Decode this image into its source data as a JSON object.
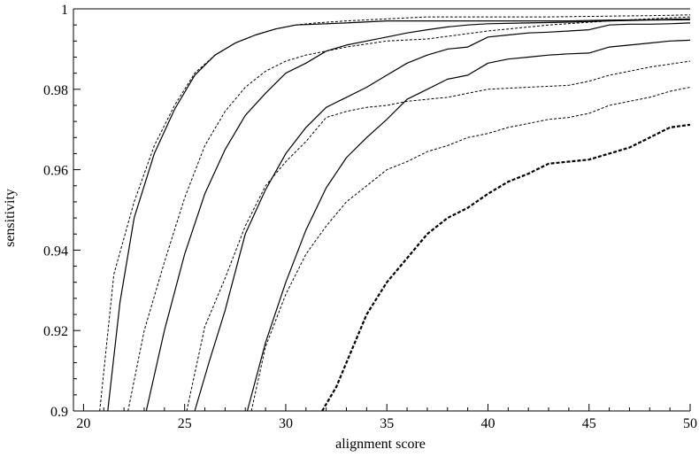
{
  "chart_data": {
    "type": "line",
    "title": "",
    "xlabel": "alignment score",
    "ylabel": "sensitivity",
    "xlim": [
      19.5,
      50
    ],
    "ylim": [
      0.9,
      1.0
    ],
    "xticks": [
      20,
      25,
      30,
      35,
      40,
      45,
      50
    ],
    "yticks": [
      0.9,
      0.92,
      0.94,
      0.96,
      0.98,
      1.0
    ],
    "xtick_labels": [
      "20",
      "25",
      "30",
      "35",
      "40",
      "45",
      "50"
    ],
    "ytick_labels": [
      "0.9",
      "0.92",
      "0.94",
      "0.96",
      "0.98",
      "1"
    ],
    "grid": false,
    "legend": "none",
    "colors": {
      "line": "#000000",
      "axis": "#000000",
      "background": "#ffffff"
    },
    "series": [
      {
        "style": "dashed",
        "x": [
          20.8,
          21.5,
          22.5,
          23.5,
          24.5,
          25.5,
          26.5,
          27.5,
          28.5,
          29.5,
          30.5,
          31.5,
          33,
          35,
          37,
          40,
          43,
          46,
          48,
          50
        ],
        "y": [
          0.9,
          0.934,
          0.952,
          0.966,
          0.976,
          0.984,
          0.9885,
          0.9915,
          0.9935,
          0.995,
          0.996,
          0.9965,
          0.997,
          0.9975,
          0.998,
          0.998,
          0.998,
          0.9982,
          0.9983,
          0.9985
        ]
      },
      {
        "style": "solid",
        "x": [
          21.2,
          21.8,
          22.5,
          23.5,
          24.5,
          25.5,
          26.5,
          27.5,
          28.5,
          29.5,
          30.5,
          31.5,
          33,
          35,
          38,
          41,
          44,
          46,
          48,
          50
        ],
        "y": [
          0.9,
          0.927,
          0.948,
          0.964,
          0.975,
          0.9835,
          0.9885,
          0.9915,
          0.9935,
          0.995,
          0.996,
          0.9962,
          0.9965,
          0.997,
          0.997,
          0.997,
          0.997,
          0.9972,
          0.9973,
          0.9975
        ]
      },
      {
        "style": "dashed",
        "x": [
          22.2,
          23,
          24,
          25,
          26,
          27,
          28,
          29,
          30,
          31,
          32,
          33,
          35,
          37,
          40,
          43,
          46,
          48,
          50
        ],
        "y": [
          0.9,
          0.92,
          0.937,
          0.953,
          0.966,
          0.9745,
          0.9805,
          0.9845,
          0.987,
          0.9885,
          0.9895,
          0.9905,
          0.992,
          0.9925,
          0.9945,
          0.996,
          0.997,
          0.9975,
          0.998
        ]
      },
      {
        "style": "solid",
        "x": [
          23.1,
          24,
          25,
          26,
          27,
          28,
          29,
          30,
          31,
          32,
          33,
          34,
          35,
          36,
          37,
          38,
          39,
          40,
          42,
          44,
          46,
          48,
          50
        ],
        "y": [
          0.9,
          0.92,
          0.939,
          0.954,
          0.965,
          0.9735,
          0.979,
          0.984,
          0.9865,
          0.9895,
          0.991,
          0.992,
          0.993,
          0.994,
          0.9948,
          0.9955,
          0.996,
          0.9963,
          0.9965,
          0.9967,
          0.997,
          0.9972,
          0.9973
        ]
      },
      {
        "style": "solid",
        "x": [
          25.5,
          26.2,
          27,
          28,
          29,
          30,
          31,
          32,
          33,
          34,
          35,
          36,
          37,
          38,
          39,
          40,
          41,
          42,
          43,
          44,
          45,
          46,
          47,
          48,
          49,
          50
        ],
        "y": [
          0.9,
          0.912,
          0.925,
          0.944,
          0.955,
          0.964,
          0.9705,
          0.9755,
          0.978,
          0.9805,
          0.9835,
          0.9865,
          0.9885,
          0.99,
          0.9905,
          0.993,
          0.9935,
          0.994,
          0.9942,
          0.9945,
          0.9948,
          0.996,
          0.9962,
          0.9962,
          0.9963,
          0.9965
        ]
      },
      {
        "style": "dashed",
        "x": [
          25.1,
          26,
          27,
          28,
          29,
          30,
          31,
          32,
          33,
          34,
          35,
          36,
          37,
          38,
          39,
          40,
          42,
          44,
          45,
          46,
          47,
          48,
          50
        ],
        "y": [
          0.9,
          0.921,
          0.933,
          0.946,
          0.956,
          0.962,
          0.967,
          0.973,
          0.9745,
          0.9755,
          0.976,
          0.977,
          0.9775,
          0.978,
          0.979,
          0.98,
          0.9805,
          0.981,
          0.982,
          0.9835,
          0.9845,
          0.9855,
          0.987
        ]
      },
      {
        "style": "solid",
        "x": [
          28.1,
          29,
          30,
          31,
          32,
          33,
          34,
          35,
          36,
          37,
          38,
          39,
          40,
          41,
          42,
          43,
          44,
          45,
          46,
          47,
          48,
          49,
          50
        ],
        "y": [
          0.9,
          0.917,
          0.932,
          0.945,
          0.9555,
          0.963,
          0.968,
          0.9725,
          0.9775,
          0.98,
          0.9825,
          0.9835,
          0.9865,
          0.9875,
          0.988,
          0.9885,
          0.9888,
          0.989,
          0.9905,
          0.991,
          0.9915,
          0.992,
          0.9922
        ]
      },
      {
        "style": "dashed",
        "x": [
          28.3,
          29,
          30,
          31,
          32,
          33,
          34,
          35,
          36,
          37,
          38,
          39,
          40,
          41,
          42,
          43,
          44,
          45,
          46,
          47,
          48,
          49,
          50
        ],
        "y": [
          0.9,
          0.916,
          0.929,
          0.939,
          0.946,
          0.952,
          0.956,
          0.96,
          0.962,
          0.9645,
          0.966,
          0.968,
          0.969,
          0.9705,
          0.9715,
          0.9725,
          0.973,
          0.974,
          0.976,
          0.977,
          0.978,
          0.9795,
          0.9805
        ]
      },
      {
        "style": "bold-dashed",
        "x": [
          31.8,
          32.5,
          33,
          34,
          35,
          36,
          37,
          38,
          39,
          40,
          41,
          42,
          43,
          44,
          45,
          46,
          47,
          48,
          49,
          50
        ],
        "y": [
          0.9,
          0.906,
          0.912,
          0.924,
          0.932,
          0.938,
          0.944,
          0.948,
          0.9505,
          0.954,
          0.957,
          0.959,
          0.9615,
          0.962,
          0.9625,
          0.964,
          0.9655,
          0.968,
          0.9705,
          0.9712
        ]
      }
    ]
  }
}
